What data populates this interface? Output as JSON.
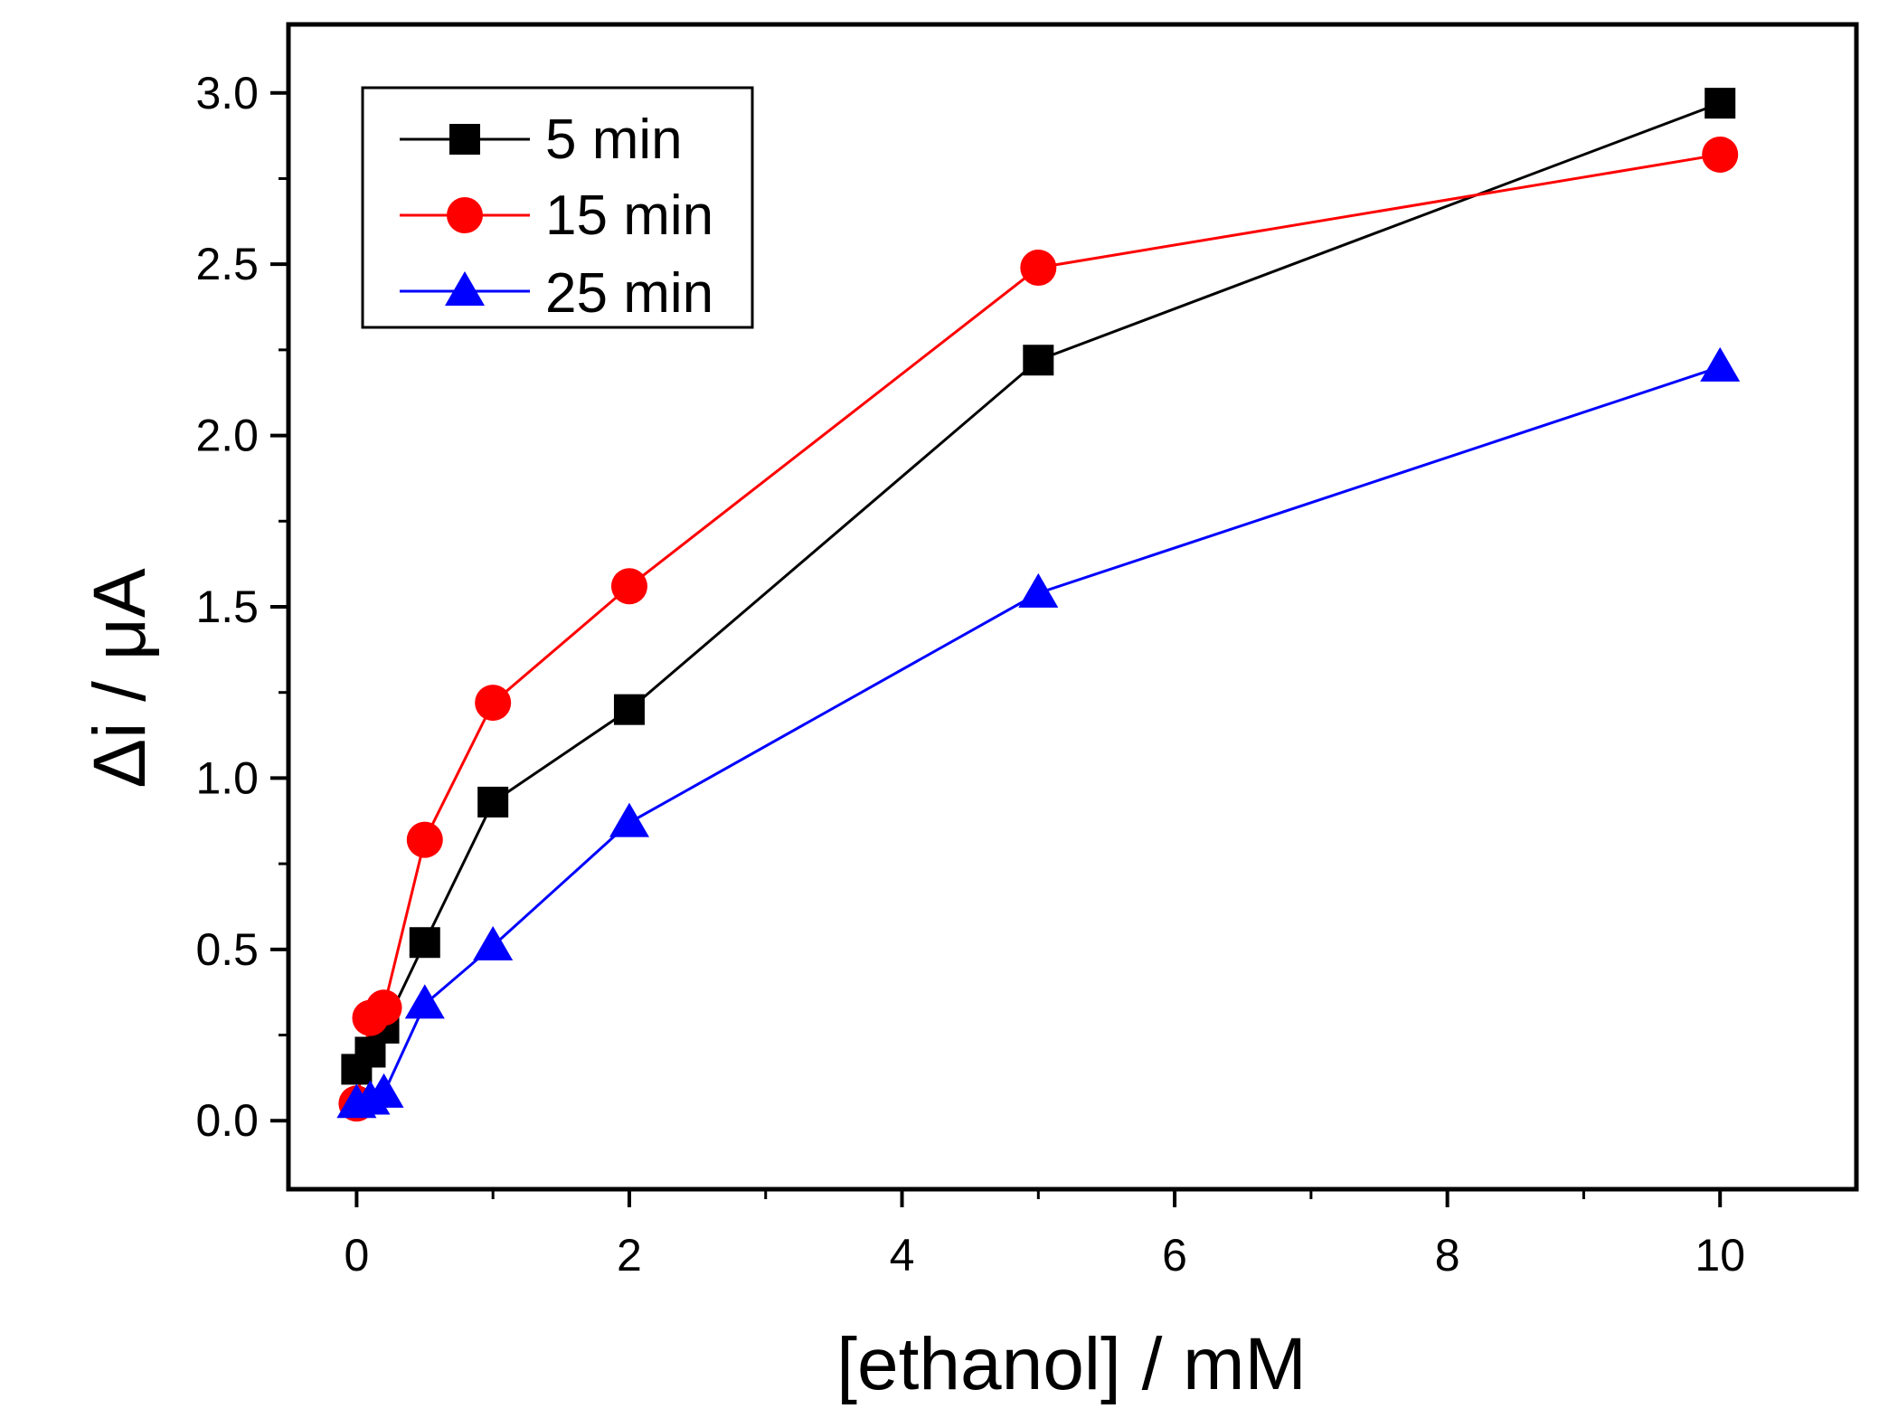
{
  "chart_data": {
    "type": "line",
    "title": "",
    "xlabel": "[ethanol] / mM",
    "ylabel": "Δi / μA",
    "xlim": [
      -0.5,
      11
    ],
    "ylim": [
      -0.2,
      3.2
    ],
    "xticks": [
      0,
      2,
      4,
      6,
      8,
      10
    ],
    "xtick_labels": [
      "0",
      "2",
      "4",
      "6",
      "8",
      "10"
    ],
    "xminor": [
      1,
      3,
      5,
      7,
      9
    ],
    "yticks": [
      0.0,
      0.5,
      1.0,
      1.5,
      2.0,
      2.5,
      3.0
    ],
    "ytick_labels": [
      "0.0",
      "0.5",
      "1.0",
      "1.5",
      "2.0",
      "2.5",
      "3.0"
    ],
    "yminor": [
      0.25,
      0.75,
      1.25,
      1.75,
      2.25,
      2.75
    ],
    "grid": false,
    "legend_position": "top-left",
    "series": [
      {
        "name": "5 min",
        "color": "#000000",
        "marker": "square",
        "x": [
          0,
          0.1,
          0.2,
          0.5,
          1,
          2,
          5,
          10
        ],
        "y": [
          0.15,
          0.2,
          0.27,
          0.52,
          0.93,
          1.2,
          2.22,
          2.97
        ]
      },
      {
        "name": "15 min",
        "color": "#ff0000",
        "marker": "circle",
        "x": [
          0,
          0.1,
          0.2,
          0.5,
          1,
          2,
          5,
          10
        ],
        "y": [
          0.05,
          0.3,
          0.33,
          0.82,
          1.22,
          1.56,
          2.49,
          2.82
        ]
      },
      {
        "name": "25 min",
        "color": "#0000ff",
        "marker": "triangle",
        "x": [
          0,
          0.1,
          0.2,
          0.5,
          1,
          2,
          5,
          10
        ],
        "y": [
          0.05,
          0.06,
          0.08,
          0.34,
          0.51,
          0.87,
          1.54,
          2.2
        ]
      }
    ]
  }
}
